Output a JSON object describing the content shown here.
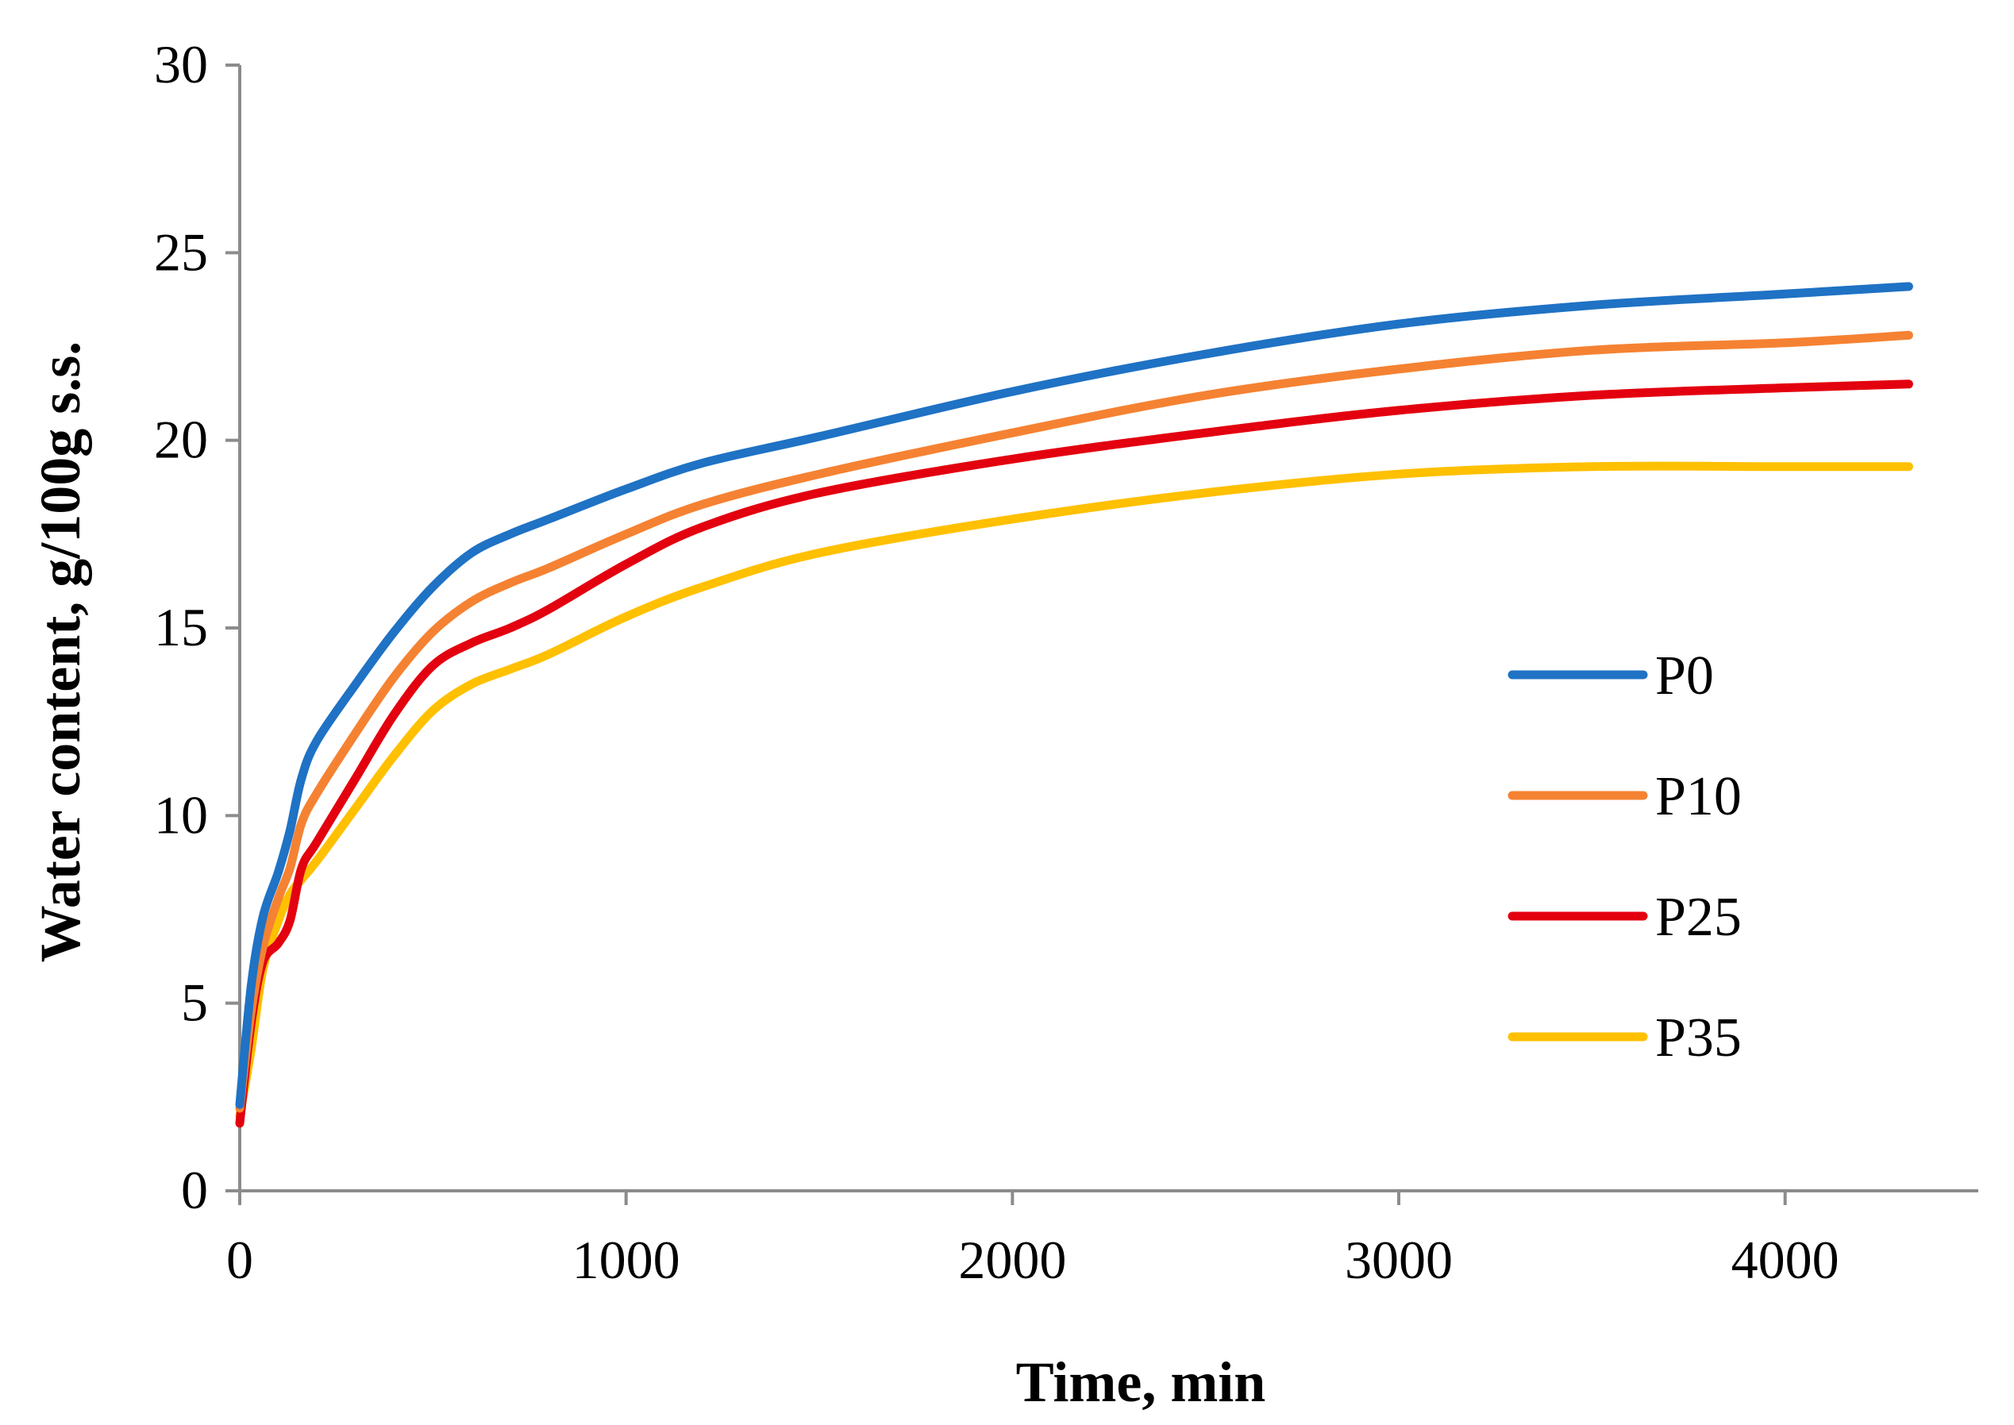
{
  "chart_data": {
    "type": "line",
    "xlabel": "Time, min",
    "ylabel": "Water content, g/100g s.s.",
    "xlim": [
      0,
      4500
    ],
    "ylim": [
      0,
      30
    ],
    "xticks": [
      0,
      1000,
      2000,
      3000,
      4000
    ],
    "yticks": [
      0,
      5,
      10,
      15,
      20,
      25,
      30
    ],
    "grid": false,
    "legend_position": "right",
    "series": [
      {
        "name": "P0",
        "color": "#1F72C4",
        "x": [
          0,
          30,
          60,
          100,
          130,
          160,
          200,
          300,
          400,
          500,
          600,
          700,
          800,
          1000,
          1200,
          1500,
          2000,
          2500,
          3000,
          3500,
          4000,
          4320
        ],
        "y": [
          2.3,
          5.5,
          7.3,
          8.5,
          9.6,
          11.0,
          12.0,
          13.5,
          14.9,
          16.1,
          17.0,
          17.5,
          17.9,
          18.7,
          19.4,
          20.1,
          21.3,
          22.3,
          23.1,
          23.6,
          23.9,
          24.1
        ]
      },
      {
        "name": "P10",
        "color": "#F58232",
        "x": [
          0,
          30,
          60,
          100,
          130,
          160,
          200,
          300,
          400,
          500,
          600,
          700,
          800,
          1000,
          1200,
          1500,
          2000,
          2500,
          3000,
          3500,
          4000,
          4320
        ],
        "y": [
          2.2,
          4.8,
          6.5,
          7.8,
          8.6,
          9.8,
          10.6,
          12.2,
          13.7,
          14.9,
          15.7,
          16.2,
          16.6,
          17.5,
          18.3,
          19.1,
          20.2,
          21.2,
          21.9,
          22.4,
          22.6,
          22.8
        ]
      },
      {
        "name": "P25",
        "color": "#E3000F",
        "x": [
          0,
          30,
          60,
          100,
          130,
          160,
          200,
          300,
          400,
          500,
          600,
          700,
          800,
          1000,
          1200,
          1500,
          2000,
          2500,
          3000,
          3500,
          4000,
          4320
        ],
        "y": [
          1.8,
          4.5,
          6.1,
          6.6,
          7.2,
          8.6,
          9.3,
          11.0,
          12.7,
          14.0,
          14.6,
          15.0,
          15.5,
          16.7,
          17.7,
          18.6,
          19.5,
          20.2,
          20.8,
          21.2,
          21.4,
          21.5
        ]
      },
      {
        "name": "P35",
        "color": "#FFC000",
        "x": [
          0,
          30,
          60,
          100,
          130,
          160,
          200,
          300,
          400,
          500,
          600,
          700,
          800,
          1000,
          1200,
          1500,
          2000,
          2500,
          3000,
          3500,
          4000,
          4320
        ],
        "y": [
          2.0,
          3.8,
          5.9,
          7.2,
          7.9,
          8.3,
          8.8,
          10.2,
          11.6,
          12.8,
          13.5,
          13.9,
          14.3,
          15.3,
          16.1,
          17.0,
          17.9,
          18.6,
          19.1,
          19.3,
          19.3,
          19.3
        ]
      }
    ]
  }
}
